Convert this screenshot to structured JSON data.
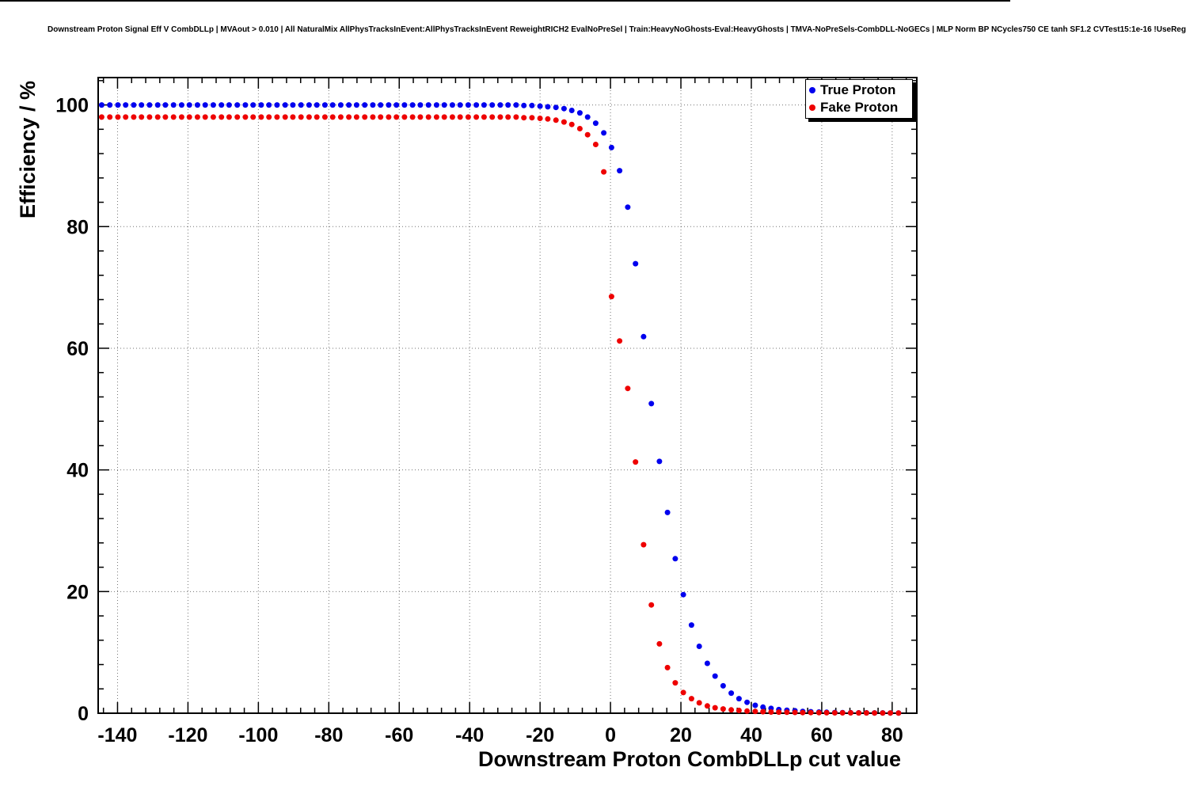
{
  "chart_data": {
    "type": "scatter",
    "title": "Downstream Proton Signal Eff V CombDLLp | MVAout > 0.010 | All NaturalMix AllPhysTracksInEvent:AllPhysTracksInEvent ReweightRICH2 EvalNoPreSel | Train:HeavyNoGhosts-Eval:HeavyGhosts | TMVA-NoPreSels-CombDLL-NoGECs | MLP Norm BP NCycles750 CE tanh SF1.2 CVTest15:1e-16 !UseReg",
    "xlabel": "Downstream Proton CombDLLp cut value",
    "ylabel": "Efficiency / %",
    "xlim": [
      -145.5,
      87
    ],
    "ylim": [
      0,
      104.5
    ],
    "x_ticks": [
      -140,
      -120,
      -100,
      -80,
      -60,
      -40,
      -20,
      0,
      20,
      40,
      60,
      80
    ],
    "y_ticks": [
      0,
      20,
      40,
      60,
      80,
      100
    ],
    "x_minor_step": 4,
    "y_minor_step": 4,
    "grid": true,
    "legend_position": "top-right",
    "marker_radius_px": 3.5,
    "x": [
      -144.5,
      -142.2,
      -139.9,
      -137.7,
      -135.4,
      -133.2,
      -130.9,
      -128.6,
      -126.4,
      -124.1,
      -121.8,
      -119.6,
      -117.3,
      -115.1,
      -112.8,
      -110.5,
      -108.3,
      -106.0,
      -103.7,
      -101.5,
      -99.2,
      -97.0,
      -94.7,
      -92.4,
      -90.2,
      -87.9,
      -85.6,
      -83.4,
      -81.1,
      -78.9,
      -76.6,
      -74.3,
      -72.1,
      -69.8,
      -67.5,
      -65.3,
      -63.0,
      -60.8,
      -58.5,
      -56.2,
      -54.0,
      -51.7,
      -49.4,
      -47.2,
      -44.9,
      -42.7,
      -40.4,
      -38.1,
      -35.9,
      -33.6,
      -31.3,
      -29.1,
      -26.8,
      -24.6,
      -22.3,
      -20.0,
      -17.8,
      -15.5,
      -13.2,
      -11.0,
      -8.7,
      -6.5,
      -4.2,
      -1.9,
      0.3,
      2.6,
      4.9,
      7.1,
      9.4,
      11.6,
      13.9,
      16.2,
      18.4,
      20.7,
      23.0,
      25.2,
      27.5,
      29.7,
      32.0,
      34.3,
      36.5,
      38.8,
      41.1,
      43.3,
      45.6,
      47.8,
      50.1,
      52.4,
      54.6,
      56.9,
      59.2,
      61.4,
      63.7,
      65.9,
      68.2,
      70.5,
      72.7,
      75.0,
      77.3,
      79.5,
      81.8
    ],
    "series": [
      {
        "name": "True Proton",
        "color": "#0000ee",
        "values": [
          100,
          100,
          100,
          100,
          100,
          100,
          100,
          100,
          100,
          100,
          100,
          100,
          100,
          100,
          100,
          100,
          100,
          100,
          100,
          100,
          100,
          100,
          100,
          100,
          100,
          100,
          100,
          100,
          100,
          100,
          100,
          100,
          100,
          100,
          100,
          100,
          100,
          100,
          100,
          100,
          100,
          100,
          100,
          100,
          100,
          100,
          100,
          100,
          100,
          100,
          100,
          100,
          100,
          99.9,
          99.9,
          99.8,
          99.7,
          99.6,
          99.4,
          99.1,
          98.7,
          98.0,
          97.0,
          95.4,
          93.0,
          89.2,
          83.2,
          73.9,
          61.9,
          50.9,
          41.4,
          33.0,
          25.4,
          19.5,
          14.5,
          11.0,
          8.2,
          6.1,
          4.5,
          3.3,
          2.4,
          1.8,
          1.3,
          1.0,
          0.8,
          0.6,
          0.5,
          0.4,
          0.3,
          0.25,
          0.2,
          0.15,
          0.12,
          0.1,
          0.08,
          0.07,
          0.06,
          0.05,
          0.05,
          0.04,
          0.04
        ]
      },
      {
        "name": "Fake Proton",
        "color": "#ee0000",
        "values": [
          98,
          98,
          98,
          98,
          98,
          98,
          98,
          98,
          98,
          98,
          98,
          98,
          98,
          98,
          98,
          98,
          98,
          98,
          98,
          98,
          98,
          98,
          98,
          98,
          98,
          98,
          98,
          98,
          98,
          98,
          98,
          98,
          98,
          98,
          98,
          98,
          98,
          98,
          98,
          98,
          98,
          98,
          98,
          98,
          98,
          98,
          98,
          98,
          98,
          98,
          98,
          98,
          98,
          97.9,
          97.9,
          97.8,
          97.7,
          97.5,
          97.2,
          96.8,
          96.1,
          95.1,
          93.5,
          89.0,
          68.5,
          61.2,
          53.4,
          41.3,
          27.7,
          17.8,
          11.4,
          7.5,
          5.0,
          3.4,
          2.4,
          1.7,
          1.2,
          0.9,
          0.7,
          0.55,
          0.45,
          0.35,
          0.3,
          0.25,
          0.2,
          0.18,
          0.15,
          0.13,
          0.11,
          0.1,
          0.09,
          0.08,
          0.07,
          0.06,
          0.06,
          0.05,
          0.05,
          0.04,
          0.04,
          0.04,
          0.03
        ]
      }
    ]
  }
}
